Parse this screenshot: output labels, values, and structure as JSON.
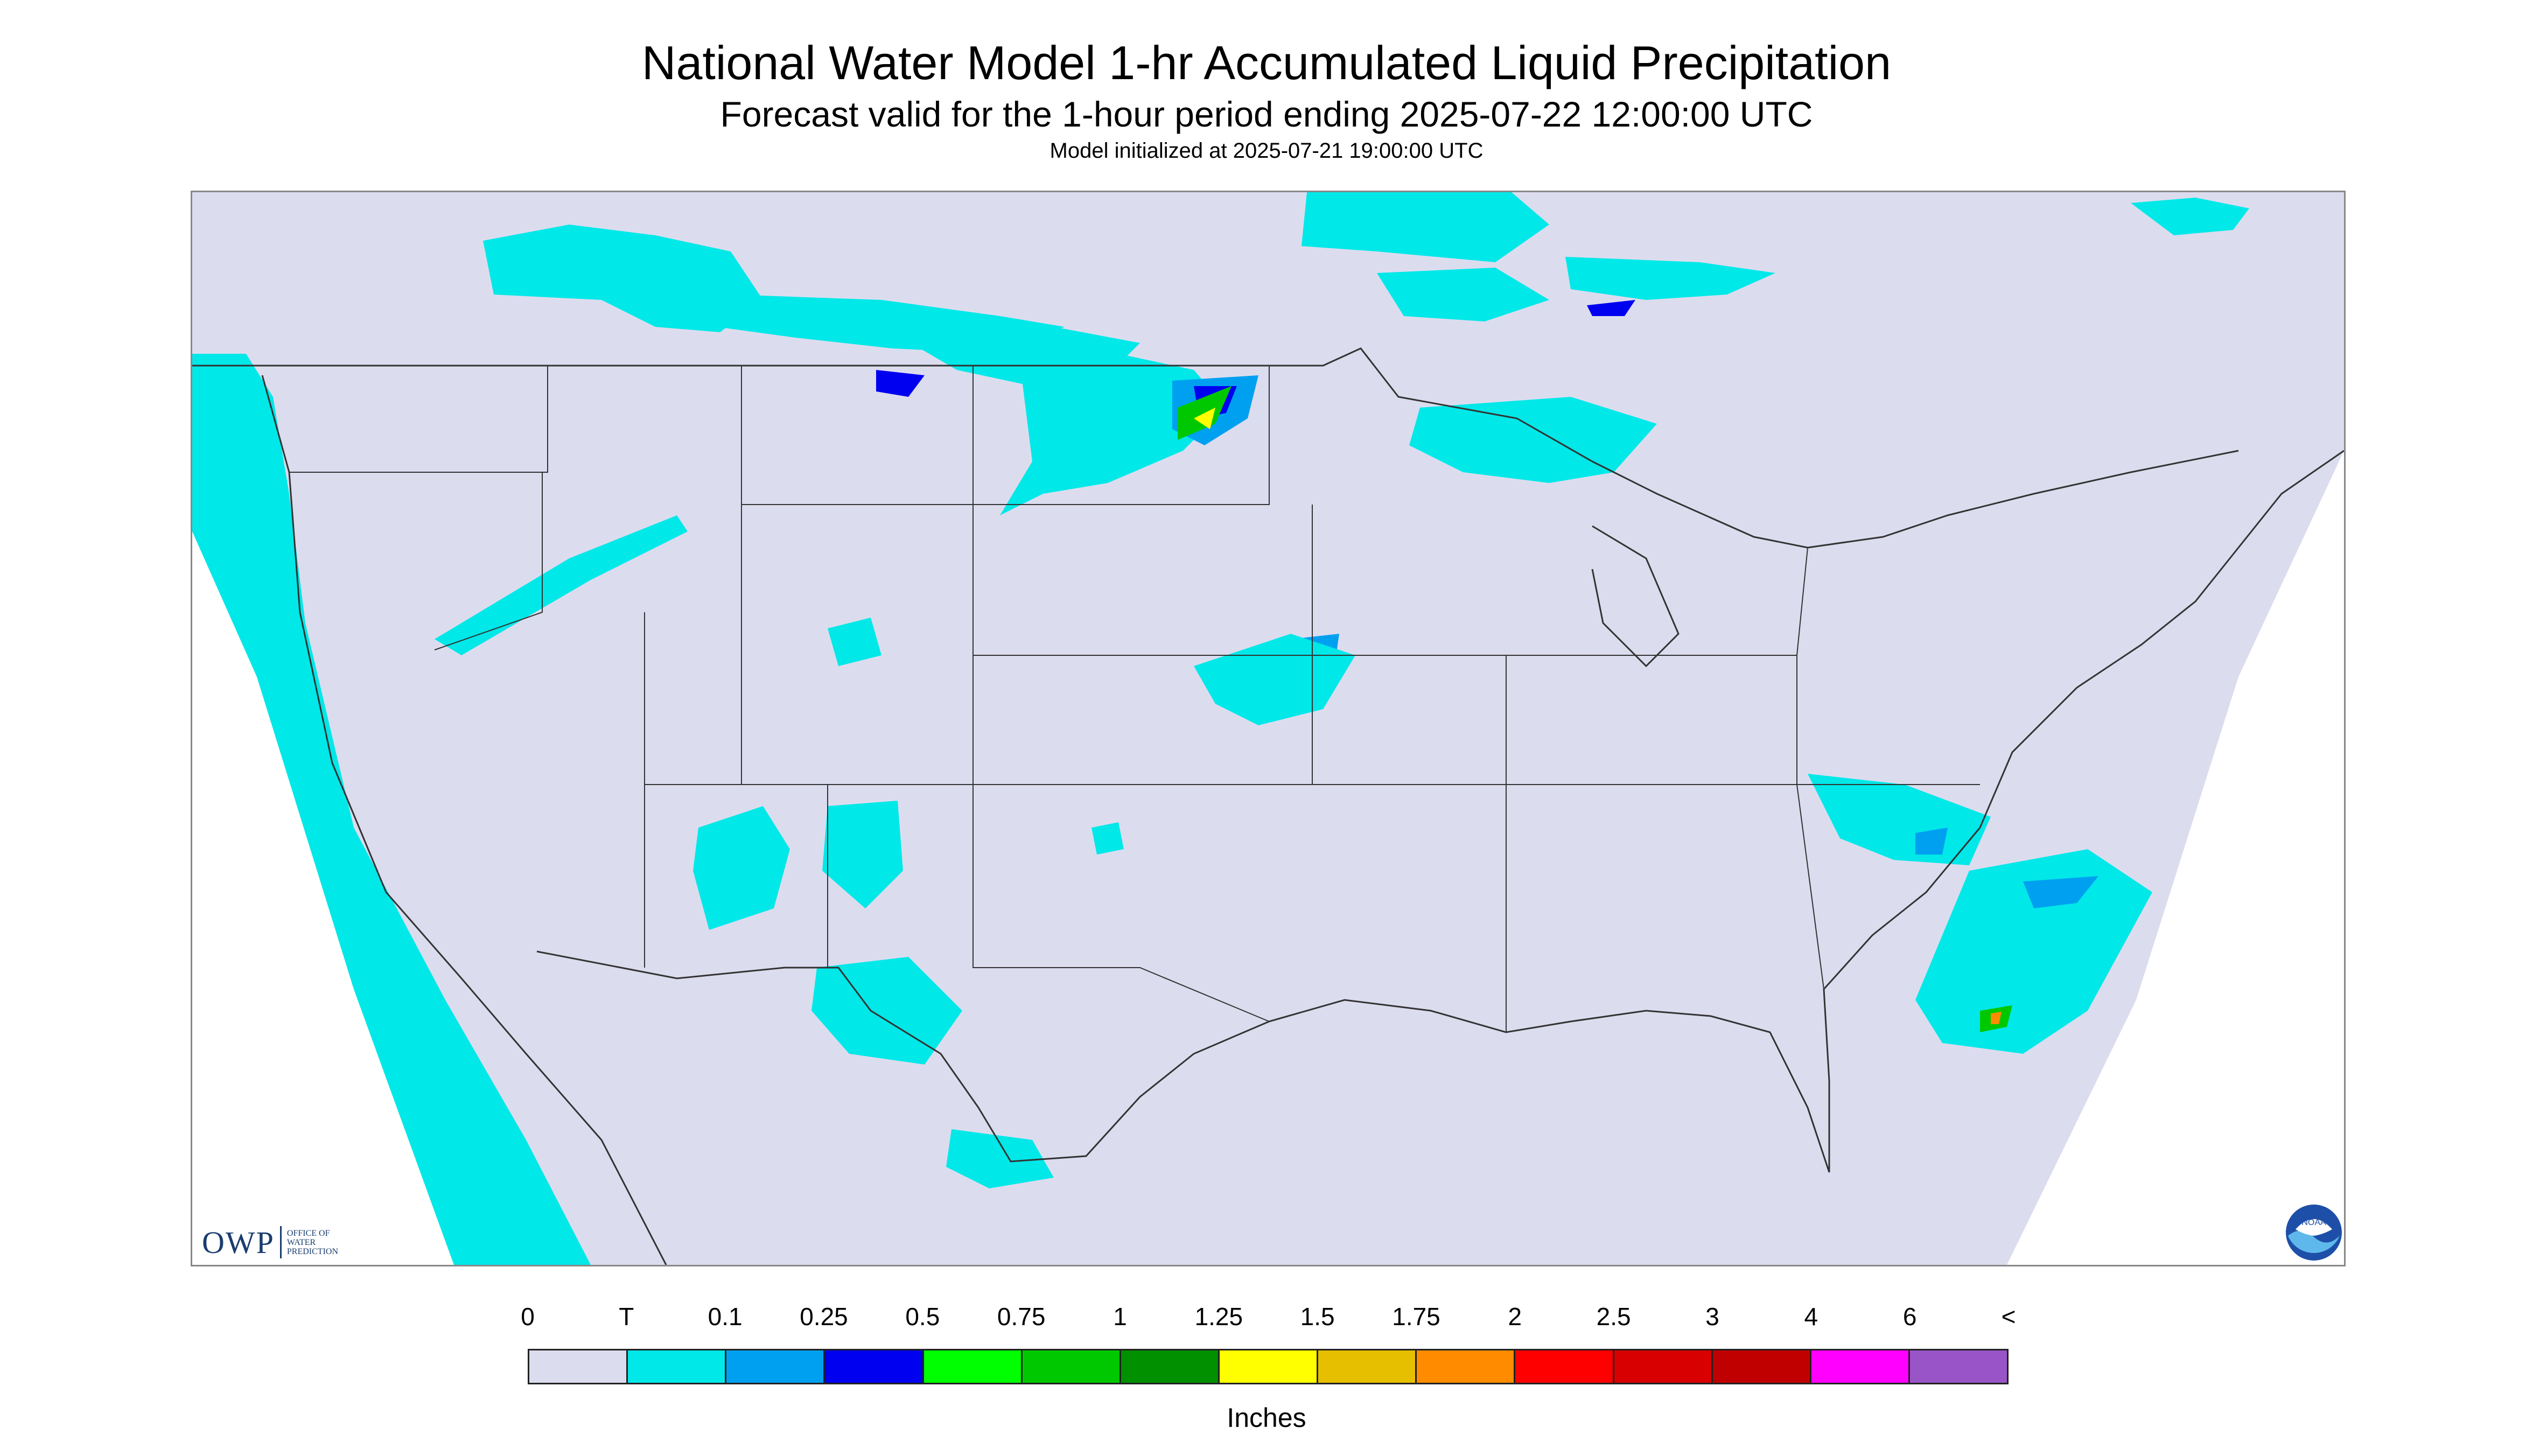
{
  "header": {
    "title": "National Water Model 1-hr Accumulated Liquid Precipitation",
    "subtitle": "Forecast valid for the 1-hour period ending 2025-07-22 12:00:00 UTC",
    "init": "Model initialized at 2025-07-21 19:00:00 UTC"
  },
  "logos": {
    "owp_text": "OWP",
    "owp_sub_1": "OFFICE OF",
    "owp_sub_2": "WATER",
    "owp_sub_3": "PREDICTION",
    "noaa_text": "NOAA",
    "owp_icon": "owp-logo-icon",
    "noaa_icon": "noaa-logo-icon"
  },
  "colors": {
    "background_no_precip": "#dcdcef",
    "outside_domain": "#ffffff",
    "boundaries": "#333333"
  },
  "legend": {
    "units": "Inches",
    "tick_labels": [
      "0",
      "T",
      "0.1",
      "0.25",
      "0.5",
      "0.75",
      "1",
      "1.25",
      "1.5",
      "1.75",
      "2",
      "2.5",
      "3",
      "4",
      "6",
      "<"
    ],
    "colors": [
      "#dcdcef",
      "#00e8e8",
      "#00a0f0",
      "#0000f0",
      "#00ff00",
      "#00c800",
      "#009000",
      "#ffff00",
      "#e6c000",
      "#ff8c00",
      "#ff0000",
      "#d80000",
      "#c00000",
      "#ff00ff",
      "#9955c8"
    ]
  }
}
